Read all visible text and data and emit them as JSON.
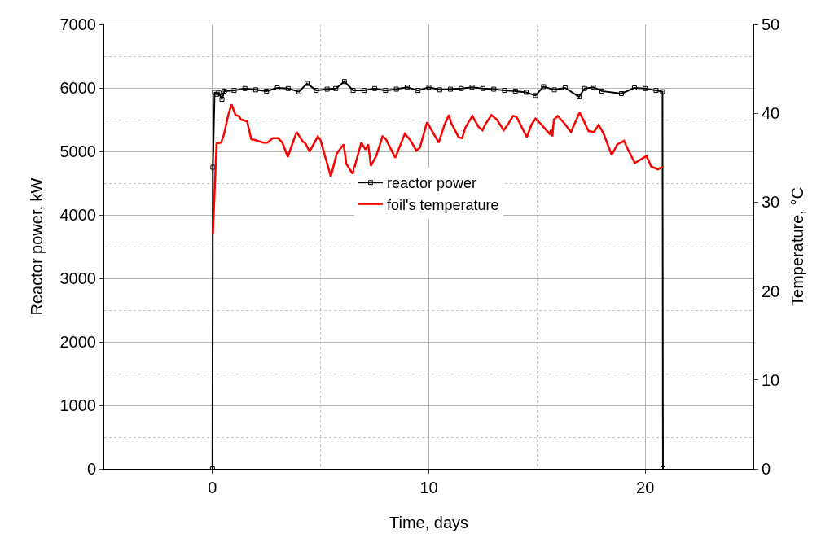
{
  "chart_data": {
    "type": "line",
    "xlabel": "Time, days",
    "ylabel": "Reactor power, kW",
    "y2label": "Temperature, °C",
    "xlim": [
      -5,
      25
    ],
    "xticks": [
      0,
      10,
      20
    ],
    "ylim": [
      0,
      7000
    ],
    "yticks": [
      0,
      1000,
      2000,
      3000,
      4000,
      5000,
      6000,
      7000
    ],
    "y2lim": [
      0,
      50
    ],
    "y2ticks": [
      0,
      10,
      20,
      30,
      40,
      50
    ],
    "grid": true,
    "legend": "center",
    "series": [
      {
        "name": "reactor power",
        "color": "#000000",
        "marker": "square",
        "x": [
          0,
          0.02,
          0.1,
          0.2,
          0.3,
          0.44,
          0.55,
          1,
          1.5,
          2,
          2.5,
          3,
          3.5,
          4,
          4.37,
          4.8,
          5.3,
          5.7,
          6.1,
          6.5,
          7,
          7.5,
          8,
          8.5,
          9,
          9.5,
          10,
          10.5,
          11,
          11.5,
          12,
          12.5,
          13,
          13.5,
          14,
          14.5,
          14.93,
          15.3,
          15.8,
          16.3,
          16.94,
          17.2,
          17.6,
          18,
          18.9,
          19.5,
          20,
          20.5,
          20.8,
          20.82
        ],
        "values": [
          0,
          4750,
          5930,
          5900,
          5920,
          5820,
          5950,
          5960,
          5990,
          5970,
          5950,
          6000,
          5990,
          5940,
          6070,
          5960,
          5980,
          5990,
          6100,
          5960,
          5960,
          5990,
          5960,
          5980,
          6010,
          5960,
          6010,
          5970,
          5980,
          5990,
          6010,
          5990,
          5980,
          5960,
          5950,
          5930,
          5880,
          6020,
          5970,
          6000,
          5860,
          5990,
          6010,
          5950,
          5910,
          6000,
          5990,
          5960,
          5940,
          0
        ]
      },
      {
        "name": "foil's temperature",
        "color": "#ff0000",
        "marker": "none",
        "axis": "y2",
        "x": [
          0.02,
          0.19,
          0.4,
          0.53,
          0.72,
          0.88,
          1.07,
          1.22,
          1.32,
          1.6,
          1.79,
          1.97,
          2.35,
          2.54,
          2.79,
          3.04,
          3.23,
          3.48,
          3.89,
          4.18,
          4.3,
          4.49,
          4.87,
          4.99,
          5.47,
          5.75,
          6.06,
          6.19,
          6.48,
          6.88,
          7.07,
          7.2,
          7.32,
          7.57,
          7.86,
          8.01,
          8.45,
          8.89,
          9.14,
          9.42,
          9.58,
          9.92,
          10.15,
          10.46,
          10.72,
          10.93,
          11.03,
          11.38,
          11.54,
          11.69,
          12.01,
          12.29,
          12.48,
          12.6,
          12.89,
          13.14,
          13.46,
          13.67,
          13.89,
          14.05,
          14.24,
          14.53,
          14.74,
          14.93,
          15.18,
          15.58,
          15.66,
          15.71,
          15.78,
          15.96,
          16.25,
          16.57,
          16.97,
          17.13,
          17.38,
          17.63,
          17.85,
          18.08,
          18.45,
          18.71,
          19.02,
          19.21,
          19.52,
          20.06,
          20.28,
          20.59,
          20.82
        ],
        "values": [
          26.4,
          36.6,
          36.7,
          37.6,
          39.7,
          41.0,
          39.8,
          39.7,
          39.3,
          39.1,
          37.1,
          37.0,
          36.7,
          36.7,
          37.2,
          37.2,
          36.7,
          35.1,
          37.9,
          36.8,
          36.6,
          35.7,
          37.4,
          37.0,
          32.9,
          35.5,
          36.5,
          34.3,
          33.2,
          36.7,
          35.9,
          36.5,
          34.1,
          35.2,
          37.4,
          37.1,
          35.0,
          37.7,
          37.0,
          35.8,
          36.1,
          39.0,
          38.0,
          36.7,
          38.7,
          39.8,
          38.9,
          37.3,
          37.2,
          38.4,
          39.7,
          38.5,
          38.1,
          38.7,
          39.8,
          39.3,
          38.1,
          38.8,
          39.7,
          39.6,
          38.7,
          37.3,
          38.7,
          39.4,
          38.8,
          37.7,
          38.2,
          37.4,
          39.3,
          39.7,
          38.9,
          37.9,
          40.1,
          39.3,
          38.0,
          37.9,
          38.7,
          37.7,
          35.3,
          36.5,
          36.9,
          35.9,
          34.4,
          35.2,
          34.0,
          33.7,
          34.0
        ]
      }
    ]
  }
}
